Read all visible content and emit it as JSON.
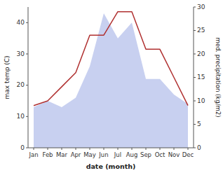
{
  "chart_data": {
    "type": "combo",
    "xlabel": "date (month)",
    "ylabel": "max temp (C)",
    "y2label": "med. precipitation (kg/m2)",
    "categories": [
      "Jan",
      "Feb",
      "Mar",
      "Apr",
      "May",
      "Jun",
      "Jul",
      "Aug",
      "Sep",
      "Oct",
      "Nov",
      "Dec"
    ],
    "series": [
      {
        "type": "area",
        "color": "#c8d0f0",
        "values": [
          13,
          15,
          13,
          16,
          26,
          43,
          35,
          40,
          22,
          22,
          17,
          14
        ]
      },
      {
        "type": "line",
        "color": "#b03030",
        "axis": "y2",
        "values": [
          9,
          10,
          13,
          16,
          24,
          24,
          29,
          29,
          21,
          21,
          15,
          9
        ]
      }
    ],
    "ylim": [
      0,
      45
    ],
    "yticks": [
      0,
      10,
      20,
      30,
      40
    ],
    "y2lim": [
      0,
      30
    ],
    "y2ticks": [
      0,
      5,
      10,
      15,
      20,
      25,
      30
    ],
    "grid": false
  }
}
